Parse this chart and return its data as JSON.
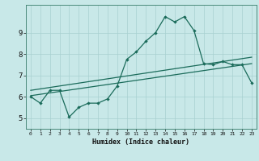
{
  "title": "",
  "xlabel": "Humidex (Indice chaleur)",
  "bg_color": "#c8e8e8",
  "line_color": "#1a6b5a",
  "grid_color": "#a8d0d0",
  "xlim": [
    -0.5,
    23.5
  ],
  "ylim": [
    4.5,
    10.3
  ],
  "yticks": [
    5,
    6,
    7,
    8,
    9
  ],
  "ytick_labels": [
    "5",
    "6",
    "7",
    "8",
    "9"
  ],
  "xticks": [
    0,
    1,
    2,
    3,
    4,
    5,
    6,
    7,
    8,
    9,
    10,
    11,
    12,
    13,
    14,
    15,
    16,
    17,
    18,
    19,
    20,
    21,
    22,
    23
  ],
  "line1_x": [
    0,
    1,
    2,
    3,
    4,
    5,
    6,
    7,
    8,
    9,
    10,
    11,
    12,
    13,
    14,
    15,
    16,
    17,
    18,
    19,
    20,
    21,
    22,
    23
  ],
  "line1_y": [
    6.0,
    5.7,
    6.3,
    6.3,
    5.05,
    5.5,
    5.7,
    5.7,
    5.9,
    6.5,
    7.75,
    8.1,
    8.6,
    9.0,
    9.75,
    9.5,
    9.75,
    9.1,
    7.55,
    7.5,
    7.65,
    7.5,
    7.5,
    6.65
  ],
  "line2_x": [
    0,
    23
  ],
  "line2_y": [
    6.05,
    7.55
  ],
  "line3_x": [
    0,
    23
  ],
  "line3_y": [
    6.3,
    7.85
  ]
}
